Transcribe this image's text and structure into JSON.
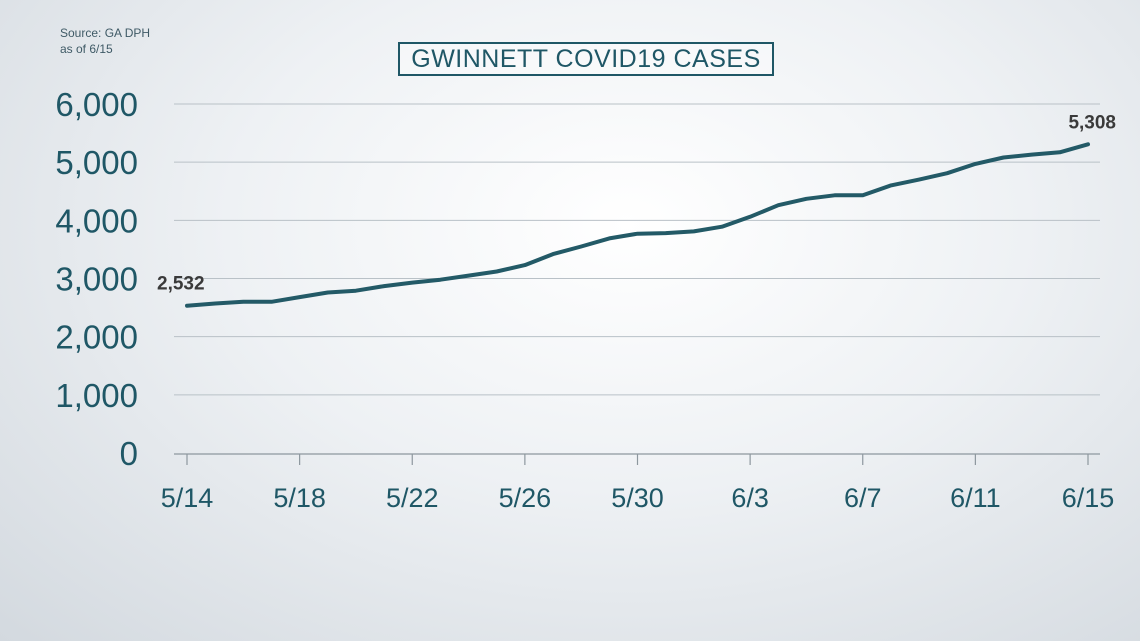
{
  "source": {
    "line1": "Source: GA DPH",
    "line2": "as of 6/15"
  },
  "colors": {
    "line": "#235a67",
    "text": "#1f5766",
    "grid": "#b9c1c7",
    "axis": "#8d979e"
  },
  "chart_data": {
    "type": "line",
    "title": "GWINNETT COVID19 CASES",
    "xlabel": "",
    "ylabel": "",
    "ylim": [
      0,
      6000
    ],
    "grid": true,
    "y_ticks": [
      0,
      1000,
      2000,
      3000,
      4000,
      5000,
      6000
    ],
    "y_tick_labels": [
      "0",
      "1,000",
      "2,000",
      "3,000",
      "4,000",
      "5,000",
      "6,000"
    ],
    "x_tick_labels": [
      "5/14",
      "5/18",
      "5/22",
      "5/26",
      "5/30",
      "6/3",
      "6/7",
      "6/11",
      "6/15"
    ],
    "x": [
      "5/14",
      "5/15",
      "5/16",
      "5/17",
      "5/18",
      "5/19",
      "5/20",
      "5/21",
      "5/22",
      "5/23",
      "5/24",
      "5/25",
      "5/26",
      "5/27",
      "5/28",
      "5/29",
      "5/30",
      "5/31",
      "6/1",
      "6/2",
      "6/3",
      "6/4",
      "6/5",
      "6/6",
      "6/7",
      "6/8",
      "6/9",
      "6/10",
      "6/11",
      "6/12",
      "6/13",
      "6/14",
      "6/15"
    ],
    "series": [
      {
        "values": [
          2532,
          2570,
          2600,
          2600,
          2680,
          2760,
          2790,
          2870,
          2930,
          2980,
          3050,
          3120,
          3230,
          3420,
          3550,
          3690,
          3770,
          3780,
          3810,
          3890,
          4060,
          4260,
          4370,
          4430,
          4430,
          4600,
          4700,
          4810,
          4970,
          5080,
          5130,
          5170,
          5308
        ]
      }
    ],
    "data_labels": [
      {
        "index": 0,
        "text": "2,532"
      },
      {
        "index": 32,
        "text": "5,308"
      }
    ]
  }
}
